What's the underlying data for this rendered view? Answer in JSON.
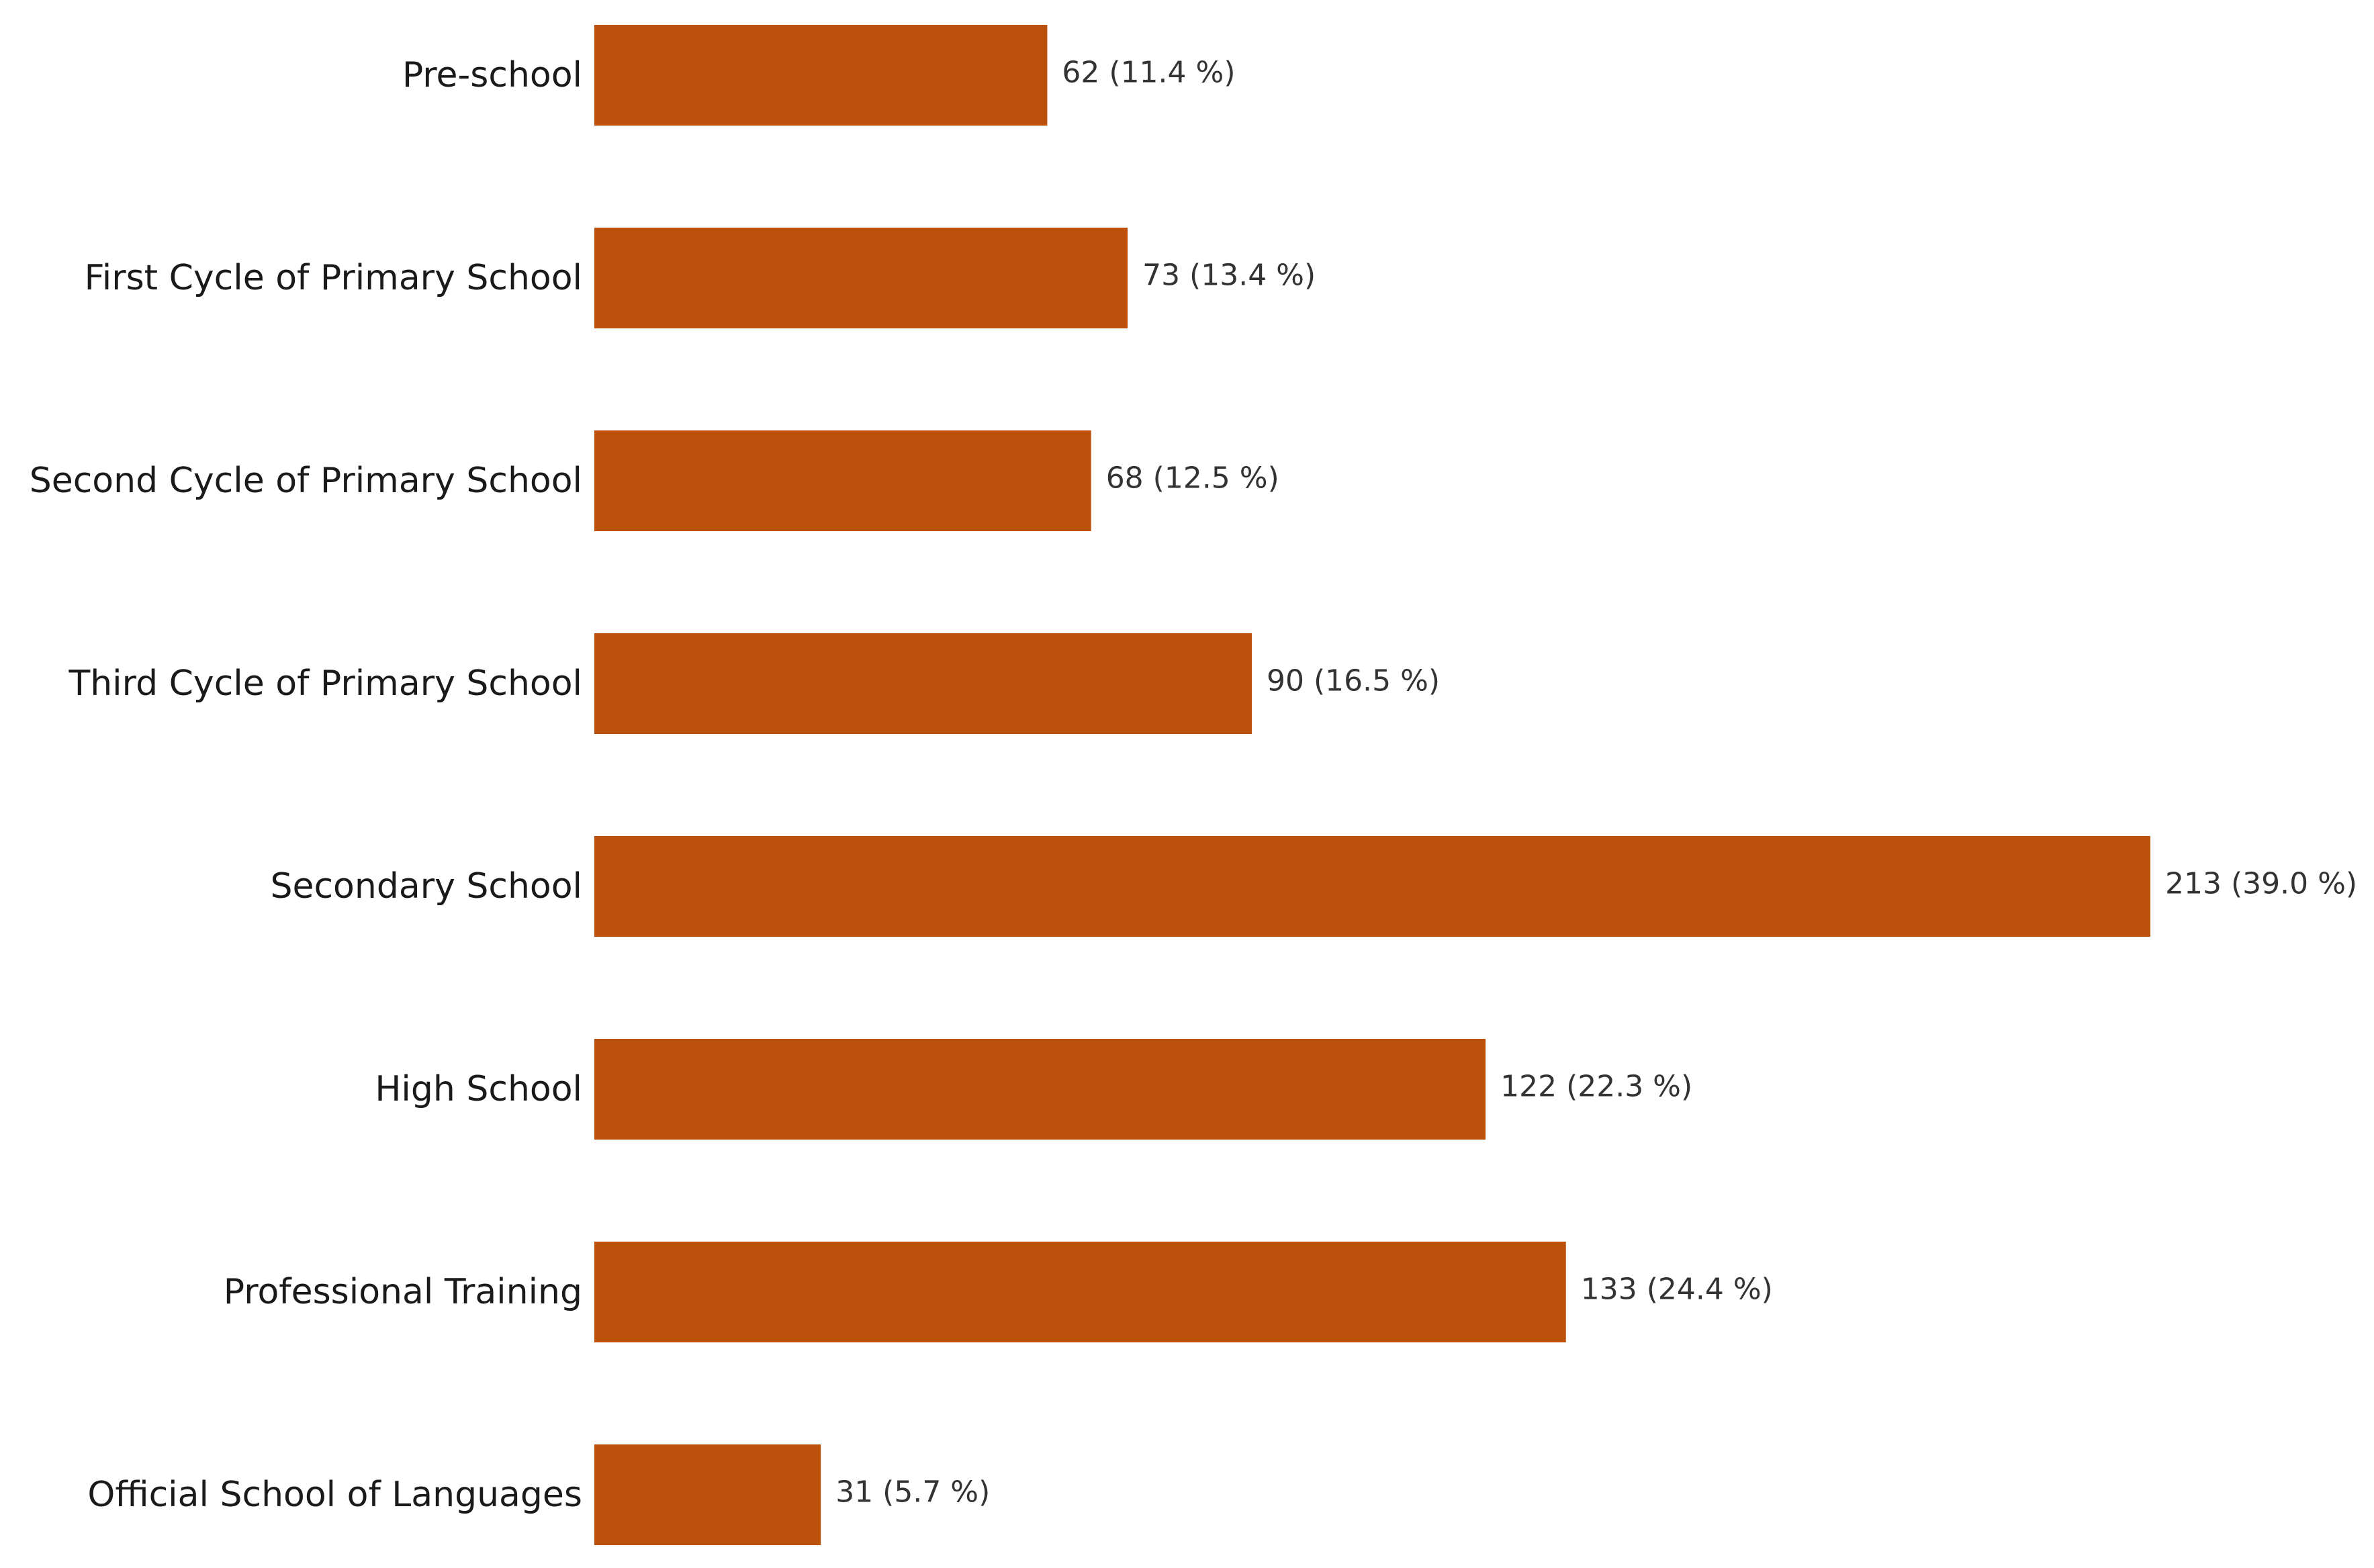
{
  "chart_data": {
    "type": "bar",
    "orientation": "horizontal",
    "categories": [
      "Pre-school",
      "First Cycle of Primary School",
      "Second Cycle of Primary School",
      "Third Cycle of Primary School",
      "Secondary School",
      "High School",
      "Professional Training",
      "Official School of Languages"
    ],
    "values": [
      62,
      73,
      68,
      90,
      213,
      122,
      133,
      31
    ],
    "percentages": [
      11.4,
      13.4,
      12.5,
      16.5,
      39.0,
      22.3,
      24.4,
      5.7
    ],
    "data_labels": [
      "62 (11.4 %)",
      "73 (13.4 %)",
      "68 (12.5 %)",
      "90 (16.5 %)",
      "213 (39.0 %)",
      "122 (22.3 %)",
      "133 (24.4 %)",
      "31 (5.7 %)"
    ],
    "title": "",
    "xlabel": "",
    "ylabel": "",
    "xlim": [
      0,
      213
    ],
    "grid": false,
    "legend": "none",
    "bar_color": "#bc510c"
  }
}
